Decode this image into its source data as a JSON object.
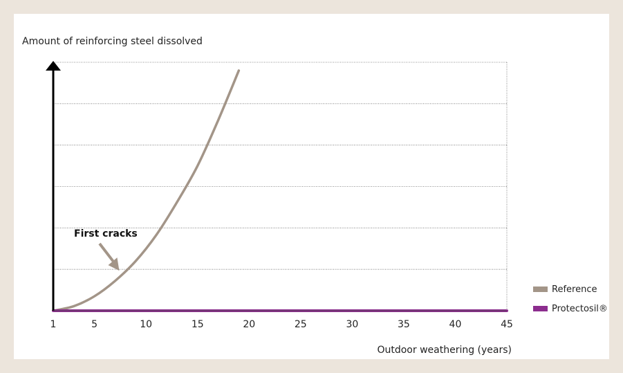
{
  "chart_data": {
    "type": "line",
    "ylabel": "Amount of reinforcing steel dissolved",
    "xlabel": "Outdoor weathering (years)",
    "xlim": [
      1,
      45
    ],
    "x_ticks": [
      1,
      5,
      10,
      15,
      20,
      25,
      30,
      35,
      40,
      45
    ],
    "ylim": [
      0,
      6
    ],
    "grid": true,
    "legend_position": "right",
    "annotation": "First cracks",
    "annotation_point": {
      "x": 7,
      "y": 1.0
    },
    "series": [
      {
        "name": "Reference",
        "color": "#a39588",
        "x": [
          1,
          3,
          5,
          7,
          9,
          11,
          13,
          15,
          17,
          19
        ],
        "y": [
          0.0,
          0.11,
          0.35,
          0.72,
          1.2,
          1.83,
          2.62,
          3.5,
          4.6,
          5.8
        ]
      },
      {
        "name": "Protectosil®",
        "color": "#8c2d8e",
        "x": [
          1,
          45
        ],
        "y": [
          0,
          0
        ]
      }
    ]
  }
}
